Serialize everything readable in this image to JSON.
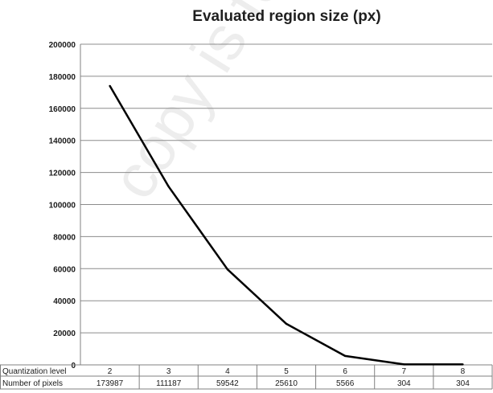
{
  "chart_data": {
    "type": "line",
    "title": "Evaluated region size (px)",
    "categories": [
      "2",
      "3",
      "4",
      "5",
      "6",
      "7",
      "8"
    ],
    "series": [
      {
        "name": "",
        "values": [
          173987,
          111187,
          59542,
          25610,
          5566,
          304,
          304
        ]
      }
    ],
    "ylim": [
      0,
      200000
    ],
    "yticks": [
      0,
      20000,
      40000,
      60000,
      80000,
      100000,
      120000,
      140000,
      160000,
      180000,
      200000
    ],
    "grid": true,
    "table": {
      "row_labels": [
        "Quantization level",
        "Number of pixels"
      ],
      "rows": [
        [
          "2",
          "3",
          "4",
          "5",
          "6",
          "7",
          "8"
        ],
        [
          "173987",
          "111187",
          "59542",
          "25610",
          "5566",
          "304",
          "304"
        ]
      ]
    },
    "colors": {
      "line": "#000000",
      "grid": "#8c8c8c",
      "axis": "#808080"
    }
  },
  "watermark": "copy is for personal"
}
